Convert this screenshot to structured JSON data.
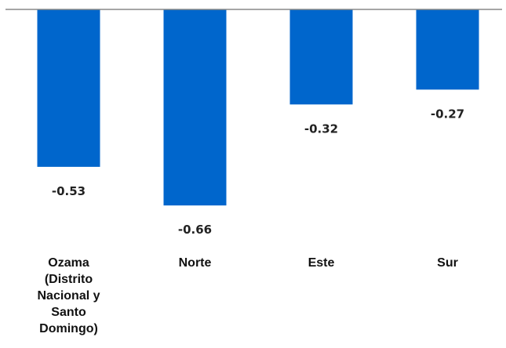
{
  "chart_data": {
    "type": "bar",
    "categories": [
      [
        "Ozama",
        "(Distrito",
        "Nacional y",
        "Santo",
        "Domingo)"
      ],
      [
        "Norte"
      ],
      [
        "Este"
      ],
      [
        "Sur"
      ]
    ],
    "values": [
      -0.53,
      -0.66,
      -0.32,
      -0.27
    ],
    "value_labels": [
      "-0.53",
      "-0.66",
      "-0.32",
      "-0.27"
    ],
    "bar_color": "#0066CC",
    "axis_color": "#888888",
    "grid": false,
    "legend": "none"
  }
}
